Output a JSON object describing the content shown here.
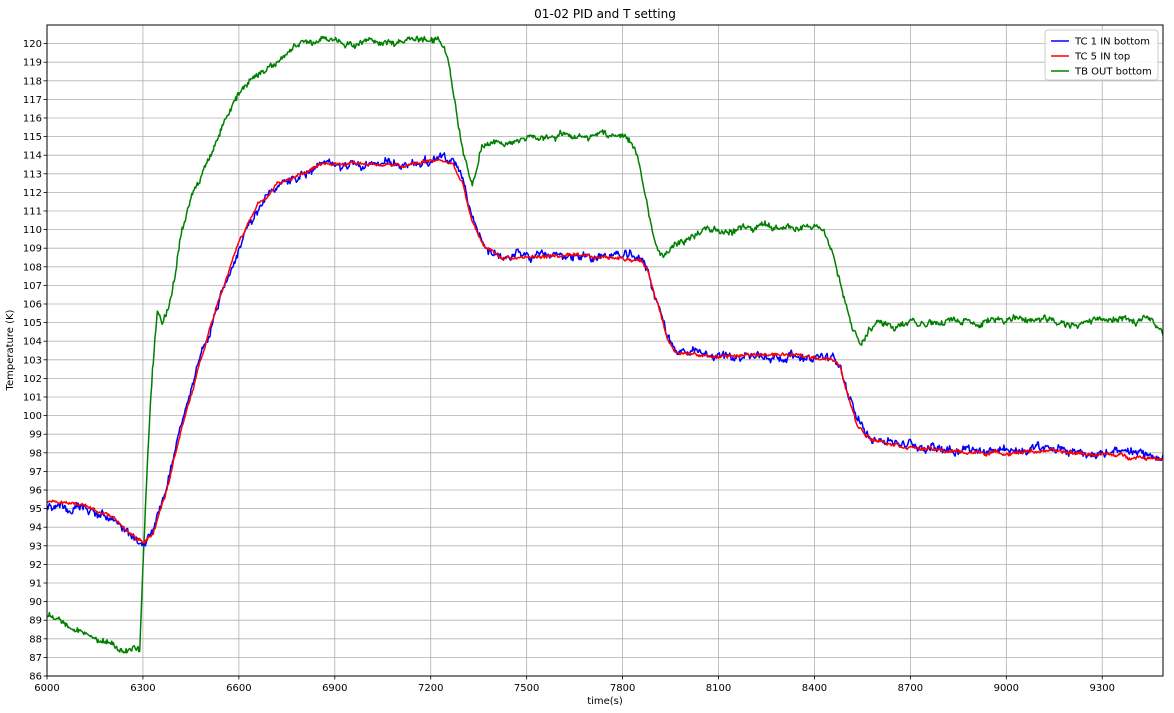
{
  "chart_data": {
    "type": "line",
    "title": "01-02 PID and T setting",
    "xlabel": "time(s)",
    "ylabel": "Temperature (K)",
    "xlim": [
      6000,
      9490
    ],
    "ylim": [
      86,
      121
    ],
    "x_ticks": [
      6000,
      6300,
      6600,
      6900,
      7200,
      7500,
      7800,
      8100,
      8400,
      8700,
      9000,
      9300
    ],
    "y_ticks": [
      86,
      87,
      88,
      89,
      90,
      91,
      92,
      93,
      94,
      95,
      96,
      97,
      98,
      99,
      100,
      101,
      102,
      103,
      104,
      105,
      106,
      107,
      108,
      109,
      110,
      111,
      112,
      113,
      114,
      115,
      116,
      117,
      118,
      119,
      120
    ],
    "grid": true,
    "legend_position": "top-right",
    "series": [
      {
        "name": "TC 1 IN bottom",
        "color": "#0000ff",
        "x": [
          6000,
          6100,
          6200,
          6280,
          6300,
          6330,
          6370,
          6420,
          6480,
          6540,
          6600,
          6660,
          6720,
          6800,
          6880,
          6960,
          7040,
          7120,
          7200,
          7240,
          7270,
          7300,
          7330,
          7360,
          7420,
          7500,
          7600,
          7700,
          7800,
          7860,
          7880,
          7910,
          7940,
          7970,
          8050,
          8150,
          8250,
          8350,
          8450,
          8480,
          8500,
          8530,
          8560,
          8600,
          8700,
          8800,
          8900,
          9000,
          9100,
          9200,
          9300,
          9400,
          9490
        ],
        "y": [
          95.1,
          95.0,
          94.5,
          93.2,
          93.1,
          93.8,
          96.0,
          99.5,
          103.0,
          106.2,
          109.2,
          111.2,
          112.3,
          113.0,
          113.5,
          113.6,
          113.5,
          113.5,
          113.8,
          113.8,
          113.6,
          112.5,
          110.5,
          109.3,
          108.6,
          108.5,
          108.6,
          108.6,
          108.6,
          108.4,
          107.8,
          106.0,
          104.3,
          103.5,
          103.2,
          103.2,
          103.2,
          103.2,
          103.1,
          102.6,
          101.5,
          99.8,
          99.1,
          98.8,
          98.4,
          98.3,
          98.2,
          98.1,
          98.2,
          98.1,
          98.0,
          97.9,
          97.9
        ]
      },
      {
        "name": "TC 5 IN top",
        "color": "#ff0000",
        "x": [
          6000,
          6100,
          6200,
          6280,
          6300,
          6330,
          6370,
          6420,
          6480,
          6540,
          6600,
          6660,
          6720,
          6800,
          6880,
          6960,
          7040,
          7120,
          7200,
          7240,
          7270,
          7300,
          7330,
          7360,
          7420,
          7500,
          7600,
          7700,
          7800,
          7860,
          7880,
          7910,
          7940,
          7970,
          8050,
          8150,
          8250,
          8350,
          8450,
          8480,
          8500,
          8530,
          8560,
          8600,
          8700,
          8800,
          8900,
          9000,
          9100,
          9200,
          9300,
          9400,
          9490
        ],
        "y": [
          95.4,
          95.3,
          94.6,
          93.4,
          93.2,
          93.6,
          95.7,
          99.2,
          103.0,
          106.3,
          109.4,
          111.4,
          112.4,
          113.1,
          113.5,
          113.6,
          113.5,
          113.4,
          113.7,
          113.7,
          113.5,
          112.4,
          110.4,
          109.2,
          108.5,
          108.5,
          108.6,
          108.5,
          108.5,
          108.3,
          107.7,
          106.0,
          104.2,
          103.4,
          103.2,
          103.2,
          103.3,
          103.2,
          103.1,
          102.6,
          101.4,
          99.6,
          99.0,
          98.7,
          98.3,
          98.1,
          98.0,
          98.0,
          98.1,
          98.0,
          97.9,
          97.8,
          97.7
        ]
      },
      {
        "name": "TB OUT bottom",
        "color": "#008000",
        "x": [
          6000,
          6050,
          6100,
          6150,
          6200,
          6250,
          6290,
          6300,
          6315,
          6330,
          6345,
          6360,
          6380,
          6400,
          6420,
          6450,
          6500,
          6550,
          6600,
          6650,
          6700,
          6750,
          6800,
          6850,
          6900,
          6950,
          7000,
          7050,
          7100,
          7150,
          7200,
          7230,
          7250,
          7270,
          7290,
          7310,
          7330,
          7345,
          7360,
          7380,
          7420,
          7500,
          7600,
          7700,
          7800,
          7830,
          7850,
          7870,
          7890,
          7910,
          7930,
          7950,
          7980,
          8050,
          8150,
          8250,
          8350,
          8400,
          8430,
          8460,
          8490,
          8520,
          8545,
          8570,
          8600,
          8700,
          8800,
          8900,
          9000,
          9100,
          9200,
          9300,
          9400,
          9450,
          9490
        ],
        "y": [
          89.2,
          89.0,
          88.5,
          88.1,
          87.8,
          87.4,
          87.4,
          92.0,
          98.0,
          102.5,
          105.7,
          105.0,
          105.8,
          107.5,
          109.8,
          111.5,
          113.5,
          115.6,
          117.3,
          118.3,
          119.0,
          119.5,
          120.0,
          120.1,
          120.2,
          120.0,
          120.2,
          120.1,
          119.9,
          120.2,
          120.3,
          120.1,
          119.5,
          117.5,
          115.3,
          113.6,
          112.5,
          113.5,
          114.6,
          114.6,
          114.7,
          114.9,
          115.1,
          115.0,
          115.0,
          114.7,
          113.7,
          112.0,
          110.2,
          108.9,
          108.6,
          109.0,
          109.4,
          109.9,
          110.0,
          110.1,
          110.0,
          110.1,
          109.8,
          108.6,
          106.6,
          104.8,
          103.6,
          104.6,
          105.0,
          105.0,
          105.0,
          105.1,
          105.2,
          105.2,
          105.0,
          105.2,
          105.1,
          105.1,
          104.3
        ]
      }
    ]
  }
}
